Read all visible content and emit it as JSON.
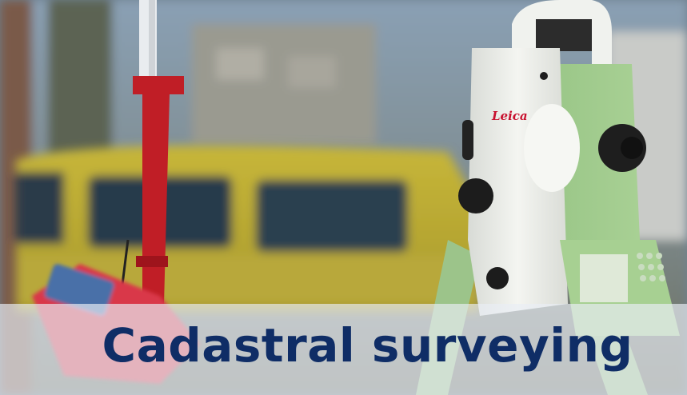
{
  "caption": {
    "title": "Cadastral surveying"
  },
  "brand": {
    "instrument_logo": "Leica"
  },
  "colors": {
    "caption_text": "#0f2d66",
    "caption_band": "#e9edf4",
    "sky": "#8ea3b7",
    "vehicle": "#c9b83a",
    "pole": "#c8202a",
    "instrument_body": "#eef0ea",
    "instrument_accent": "#9bc78b",
    "controller": "#e0384a"
  },
  "icons": [
    "total-station-image",
    "survey-pole-image",
    "field-controller-image",
    "vehicle-image"
  ]
}
